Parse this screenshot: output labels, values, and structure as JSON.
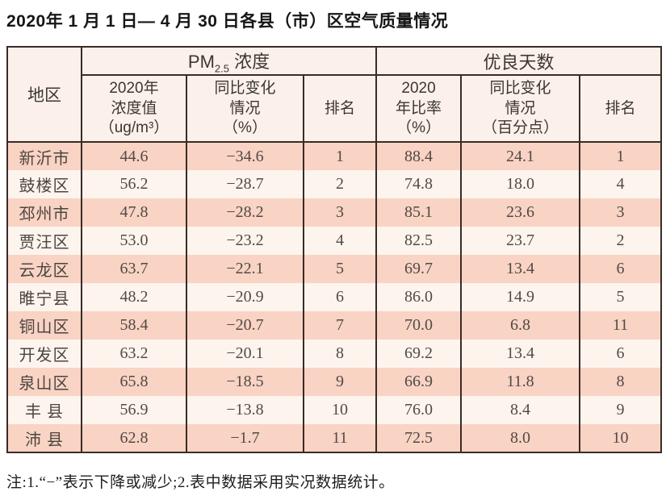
{
  "title": "2020年 1 月 1 日— 4 月 30 日各县（市）区空气质量情况",
  "footnote": "注:1.“−”表示下降或减少;2.表中数据采用实况数据统计。",
  "colors": {
    "row_odd_bg": "#f9d3c3",
    "row_even_bg": "#fdf4ee",
    "header_bg": "#fcf1ea",
    "table_border": "#3a2b27",
    "data_text": "#514a46"
  },
  "table": {
    "headers": {
      "region": "地区",
      "pm_group_prefix": "PM",
      "pm_group_sub": "2.5",
      "pm_group_suffix": " 浓度",
      "good_group": "优良天数",
      "pm_value": "2020年\n浓度值\n（ug/m³）",
      "pm_change": "同比变化\n情况\n（%）",
      "pm_rank": "排名",
      "good_ratio": "2020\n年比率\n（%）",
      "good_change": "同比变化\n情况\n（百分点）",
      "good_rank": "排名"
    },
    "rows": [
      {
        "region": "新沂市",
        "pm_value": "44.6",
        "pm_change": "−34.6",
        "pm_rank": "1",
        "good_ratio": "88.4",
        "good_change": "24.1",
        "good_rank": "1"
      },
      {
        "region": "鼓楼区",
        "pm_value": "56.2",
        "pm_change": "−28.7",
        "pm_rank": "2",
        "good_ratio": "74.8",
        "good_change": "18.0",
        "good_rank": "4"
      },
      {
        "region": "邳州市",
        "pm_value": "47.8",
        "pm_change": "−28.2",
        "pm_rank": "3",
        "good_ratio": "85.1",
        "good_change": "23.6",
        "good_rank": "3"
      },
      {
        "region": "贾汪区",
        "pm_value": "53.0",
        "pm_change": "−23.2",
        "pm_rank": "4",
        "good_ratio": "82.5",
        "good_change": "23.7",
        "good_rank": "2"
      },
      {
        "region": "云龙区",
        "pm_value": "63.7",
        "pm_change": "−22.1",
        "pm_rank": "5",
        "good_ratio": "69.7",
        "good_change": "13.4",
        "good_rank": "6"
      },
      {
        "region": "睢宁县",
        "pm_value": "48.2",
        "pm_change": "−20.9",
        "pm_rank": "6",
        "good_ratio": "86.0",
        "good_change": "14.9",
        "good_rank": "5"
      },
      {
        "region": "铜山区",
        "pm_value": "58.4",
        "pm_change": "−20.7",
        "pm_rank": "7",
        "good_ratio": "70.0",
        "good_change": "6.8",
        "good_rank": "11"
      },
      {
        "region": "开发区",
        "pm_value": "63.2",
        "pm_change": "−20.1",
        "pm_rank": "8",
        "good_ratio": "69.2",
        "good_change": "13.4",
        "good_rank": "6"
      },
      {
        "region": "泉山区",
        "pm_value": "65.8",
        "pm_change": "−18.5",
        "pm_rank": "9",
        "good_ratio": "66.9",
        "good_change": "11.8",
        "good_rank": "8"
      },
      {
        "region": "丰 县",
        "pm_value": "56.9",
        "pm_change": "−13.8",
        "pm_rank": "10",
        "good_ratio": "76.0",
        "good_change": "8.4",
        "good_rank": "9"
      },
      {
        "region": "沛 县",
        "pm_value": "62.8",
        "pm_change": "−1.7",
        "pm_rank": "11",
        "good_ratio": "72.5",
        "good_change": "8.0",
        "good_rank": "10"
      }
    ]
  }
}
